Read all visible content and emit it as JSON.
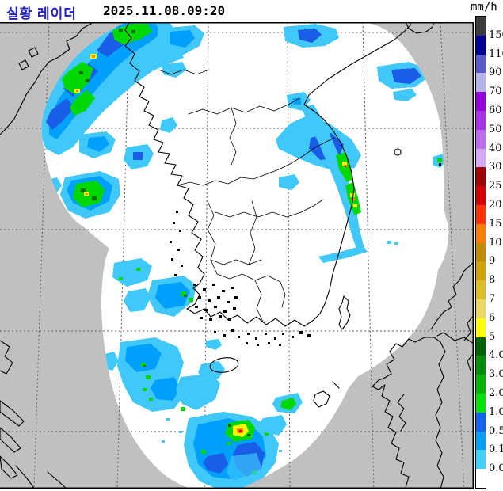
{
  "header": {
    "title": "실황 레이더",
    "title_color": "#2222cc",
    "timestamp": "2025.11.08.09:20"
  },
  "legend": {
    "unit": "mm/h",
    "labels": [
      "150",
      "110",
      "90",
      "70",
      "60",
      "50",
      "40",
      "30",
      "25",
      "20",
      "15",
      "10",
      "9",
      "8",
      "7",
      "6",
      "5",
      "4.0",
      "3.0",
      "2.0",
      "1.0",
      "0.5",
      "0.1",
      "0.0"
    ],
    "colors": [
      "#3c3c3c",
      "#000096",
      "#5a5ac8",
      "#b4b4e6",
      "#9600dc",
      "#a834ea",
      "#be6cf0",
      "#d8a8f8",
      "#a00000",
      "#d20000",
      "#ff3200",
      "#ff7d00",
      "#c08c00",
      "#cfa404",
      "#dcbe28",
      "#ead764",
      "#ffff00",
      "#006400",
      "#008c00",
      "#00b400",
      "#00e400",
      "#1464f0",
      "#00a0ff",
      "#41d2ff",
      "#ffffff"
    ]
  },
  "map": {
    "background_color": "#c0c0c0",
    "radar_coverage_color": "#ffffff",
    "grid_color": "#5a5a5a",
    "coastline_color": "#000000",
    "rain_colors": {
      "rain_light": "#41c8fa",
      "rain_moderate": "#00a0ff",
      "rain_heavy": "#1a5ee8",
      "rain_green": "#00d800",
      "rain_dark_green": "#007000",
      "rain_yellow": "#ffff00",
      "rain_orange": "#ff8200",
      "rain_red": "#e60000"
    }
  }
}
